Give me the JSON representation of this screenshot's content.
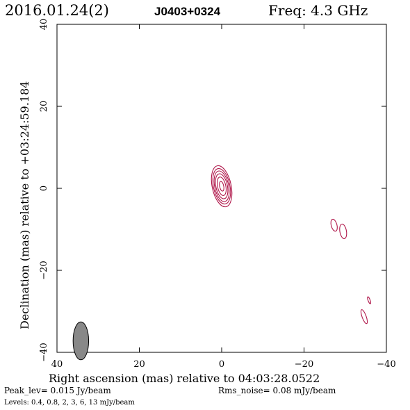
{
  "header": {
    "date": "2016.01.24(2)",
    "source": "J0403+0324",
    "freq": "Freq: 4.3 GHz"
  },
  "footer": {
    "peak": "Peak_lev=  0.015 Jy/beam",
    "rms": "Rms_noise= 0.08 mJy/beam",
    "levels": "Levels: 0.4, 0.8,   2,   3,   6,  13 mJy/beam"
  },
  "colors": {
    "contour": "#b0174a",
    "beam_fill": "#888888",
    "accent_text": "#b0174a"
  },
  "chart_data": {
    "type": "contour",
    "title": "J0403+0324",
    "xlabel": "Right ascension (mas) relative to 04:03:28.0522",
    "ylabel": "Declination (mas) relative to +03:24:59.184",
    "xlim": [
      40,
      -40
    ],
    "ylim": [
      -40,
      40
    ],
    "x_ticks": [
      40,
      20,
      0,
      -20,
      -40
    ],
    "y_ticks": [
      -40,
      -20,
      0,
      20,
      40
    ],
    "x_tick_labels": [
      "40",
      "20",
      "0",
      "−20",
      "−40"
    ],
    "y_tick_labels": [
      "−40",
      "−20",
      "0",
      "20",
      "40"
    ],
    "levels_mJy": [
      0.4,
      0.8,
      2,
      3,
      6,
      13
    ],
    "peak_Jy_per_beam": 0.015,
    "rms_mJy_per_beam": 0.08,
    "components": [
      {
        "name": "core",
        "x": 0.0,
        "y": 0.5,
        "contours": [
          {
            "rx": 2.3,
            "ry": 5.1,
            "angle": -12
          },
          {
            "rx": 2.0,
            "ry": 4.4,
            "angle": -12
          },
          {
            "rx": 1.7,
            "ry": 3.8,
            "angle": -12
          },
          {
            "rx": 1.4,
            "ry": 3.1,
            "angle": -12
          },
          {
            "rx": 1.0,
            "ry": 2.3,
            "angle": -12
          },
          {
            "rx": 0.5,
            "ry": 1.2,
            "angle": -12
          }
        ]
      },
      {
        "name": "blob-1",
        "x": -27.3,
        "y": -9.0,
        "contours": [
          {
            "rx": 0.7,
            "ry": 1.5,
            "angle": -15
          }
        ]
      },
      {
        "name": "blob-2",
        "x": -29.5,
        "y": -10.5,
        "contours": [
          {
            "rx": 0.8,
            "ry": 1.8,
            "angle": -10
          }
        ]
      },
      {
        "name": "blob-3",
        "x": -34.6,
        "y": -31.3,
        "contours": [
          {
            "rx": 0.5,
            "ry": 1.8,
            "angle": -20
          }
        ]
      },
      {
        "name": "blob-4",
        "x": -35.8,
        "y": -27.3,
        "contours": [
          {
            "rx": 0.25,
            "ry": 0.9,
            "angle": -20
          }
        ]
      }
    ],
    "beam": {
      "x": 34.2,
      "y": -37.2,
      "major_mas": 4.4,
      "minor_mas": 1.8,
      "pa_deg": 0
    }
  }
}
